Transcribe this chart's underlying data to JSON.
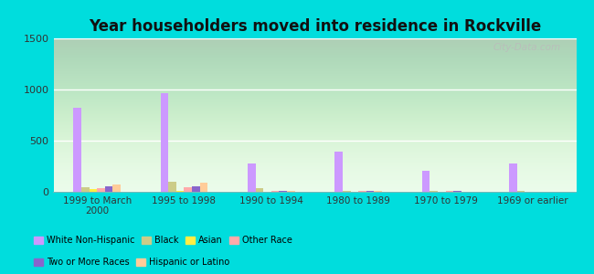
{
  "title": "Year householders moved into residence in Rockville",
  "categories": [
    "1999 to March\n2000",
    "1995 to 1998",
    "1990 to 1994",
    "1980 to 1989",
    "1970 to 1979",
    "1969 or earlier"
  ],
  "series": {
    "White Non-Hispanic": [
      820,
      960,
      280,
      390,
      205,
      275
    ],
    "Black": [
      45,
      100,
      35,
      10,
      5,
      5
    ],
    "Asian": [
      30,
      8,
      3,
      3,
      3,
      3
    ],
    "Other Race": [
      40,
      45,
      5,
      5,
      5,
      3
    ],
    "Two or More Races": [
      55,
      55,
      5,
      5,
      5,
      3
    ],
    "Hispanic or Latino": [
      70,
      90,
      8,
      5,
      3,
      3
    ]
  },
  "colors": {
    "White Non-Hispanic": "#cc99ff",
    "Black": "#cccc88",
    "Asian": "#ffee44",
    "Other Race": "#ffaaaa",
    "Two or More Races": "#8866cc",
    "Hispanic or Latino": "#ffcc99"
  },
  "ylim": [
    0,
    1500
  ],
  "yticks": [
    0,
    500,
    1000,
    1500
  ],
  "bg_outer": "#00dddd",
  "watermark": "City-Data.com"
}
